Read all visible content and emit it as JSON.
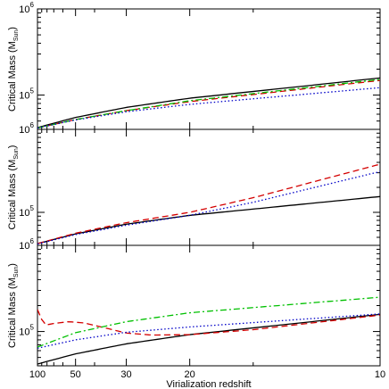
{
  "chart_data": [
    {
      "type": "line",
      "panel": "top",
      "ylabel": "Critical Mass (M",
      "ylabel_sub": "Sun",
      "ylabel_close": ")",
      "yscale": "log",
      "ylim": [
        40000,
        1000000
      ],
      "xscale": "reciprocal",
      "xlim": [
        100,
        10
      ],
      "yticks": [
        {
          "base": "10",
          "exp": "5",
          "value": 100000
        },
        {
          "base": "10",
          "exp": "6",
          "value": 1000000
        }
      ],
      "series": [
        {
          "color": "#000000",
          "dash": "solid",
          "x": [
            100,
            50,
            30,
            20,
            10
          ],
          "y": [
            42000,
            55000,
            72000,
            92000,
            158000
          ]
        },
        {
          "color": "#d40000",
          "dash": "dashed",
          "x": [
            100,
            50,
            30,
            20,
            10
          ],
          "y": [
            41500,
            52000,
            66000,
            84000,
            148000
          ]
        },
        {
          "color": "#00c000",
          "dash": "dashdot",
          "x": [
            100,
            50,
            30,
            20,
            10
          ],
          "y": [
            41500,
            52000,
            66000,
            86000,
            152000
          ]
        },
        {
          "color": "#0000c8",
          "dash": "dotted",
          "x": [
            100,
            50,
            30,
            20,
            10
          ],
          "y": [
            41500,
            51500,
            64000,
            78000,
            122000
          ]
        }
      ]
    },
    {
      "type": "line",
      "panel": "middle",
      "ylabel": "Critical Mass (M",
      "ylabel_sub": "Sun",
      "ylabel_close": ")",
      "yscale": "log",
      "ylim": [
        40000,
        1000000
      ],
      "xscale": "reciprocal",
      "xlim": [
        100,
        10
      ],
      "yticks": [
        {
          "base": "10",
          "exp": "5",
          "value": 100000
        },
        {
          "base": "10",
          "exp": "6",
          "value": 1000000
        }
      ],
      "series": [
        {
          "color": "#000000",
          "dash": "solid",
          "x": [
            100,
            50,
            30,
            20,
            10
          ],
          "y": [
            42000,
            55000,
            72000,
            92000,
            155000
          ]
        },
        {
          "color": "#d40000",
          "dash": "dashed",
          "x": [
            100,
            50,
            30,
            20,
            15,
            10
          ],
          "y": [
            42000,
            56000,
            75000,
            100000,
            150000,
            380000
          ]
        },
        {
          "color": "#0000c8",
          "dash": "dotted",
          "x": [
            100,
            50,
            30,
            20,
            15,
            10
          ],
          "y": [
            41500,
            54000,
            70000,
            92000,
            132000,
            310000
          ]
        }
      ]
    },
    {
      "type": "line",
      "panel": "bottom",
      "ylabel": "Critical Mass (M",
      "ylabel_sub": "Sun",
      "ylabel_close": ")",
      "yscale": "log",
      "ylim": [
        40000,
        1000000
      ],
      "xscale": "reciprocal",
      "xlim": [
        100,
        10
      ],
      "xlabel": "Virialization redshift",
      "xticks": [
        100,
        50,
        30,
        20,
        10
      ],
      "yticks": [
        {
          "base": "10",
          "exp": "5",
          "value": 100000
        },
        {
          "base": "10",
          "exp": "6",
          "value": 1000000
        }
      ],
      "series": [
        {
          "color": "#000000",
          "dash": "solid",
          "x": [
            100,
            50,
            30,
            20,
            10
          ],
          "y": [
            42000,
            55000,
            72000,
            92000,
            158000
          ]
        },
        {
          "color": "#d40000",
          "dash": "dashed",
          "x": [
            100,
            85,
            70,
            55,
            45,
            35,
            30,
            25,
            20,
            15,
            10
          ],
          "y": [
            180000,
            118000,
            124000,
            130000,
            126000,
            108000,
            96000,
            91000,
            92000,
            105000,
            155000
          ]
        },
        {
          "color": "#00c000",
          "dash": "dashdot",
          "x": [
            100,
            50,
            30,
            20,
            10
          ],
          "y": [
            66000,
            97000,
            130000,
            165000,
            250000
          ]
        },
        {
          "color": "#0000c8",
          "dash": "dotted",
          "x": [
            100,
            50,
            30,
            20,
            10
          ],
          "y": [
            64000,
            80000,
            98000,
            113000,
            160000
          ]
        }
      ]
    }
  ]
}
